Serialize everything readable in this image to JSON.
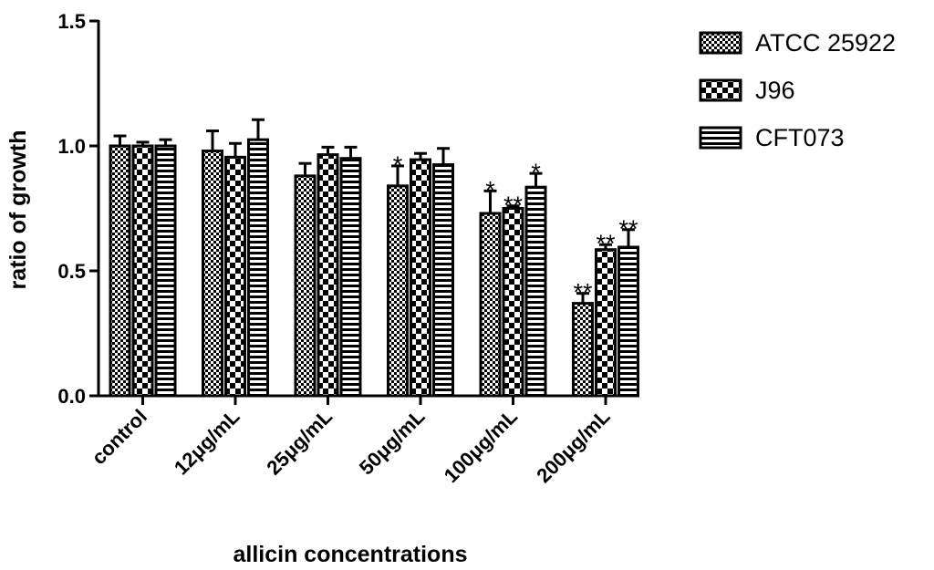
{
  "chart_data": {
    "type": "bar",
    "title": "",
    "xlabel": "allicin concentrations",
    "ylabel": "ratio of growth",
    "ylim": [
      0,
      1.5
    ],
    "yticks": [
      "0.0",
      "0.5",
      "1.0",
      "1.5"
    ],
    "categories": [
      "control",
      "12μg/mL",
      "25μg/mL",
      "50μg/mL",
      "100μg/mL",
      "200μg/mL"
    ],
    "series": [
      {
        "name": "ATCC 25922",
        "pattern": "checker-fine",
        "values": [
          1.0,
          0.98,
          0.88,
          0.84,
          0.73,
          0.37
        ],
        "errors": [
          0.04,
          0.08,
          0.05,
          0.08,
          0.09,
          0.04
        ],
        "significance": [
          "",
          "",
          "",
          "*",
          "*",
          "**"
        ]
      },
      {
        "name": "J96",
        "pattern": "checker-coarse",
        "values": [
          1.0,
          0.955,
          0.965,
          0.945,
          0.75,
          0.585
        ],
        "errors": [
          0.015,
          0.055,
          0.03,
          0.025,
          0.01,
          0.02
        ],
        "significance": [
          "",
          "",
          "",
          "",
          "**",
          "**"
        ]
      },
      {
        "name": "CFT073",
        "pattern": "horizontal-stripes",
        "values": [
          1.0,
          1.025,
          0.95,
          0.925,
          0.835,
          0.595
        ],
        "errors": [
          0.025,
          0.08,
          0.045,
          0.065,
          0.055,
          0.07
        ],
        "significance": [
          "",
          "",
          "",
          "",
          "*",
          "**"
        ]
      }
    ],
    "legend_position": "top-right",
    "grid": false
  }
}
